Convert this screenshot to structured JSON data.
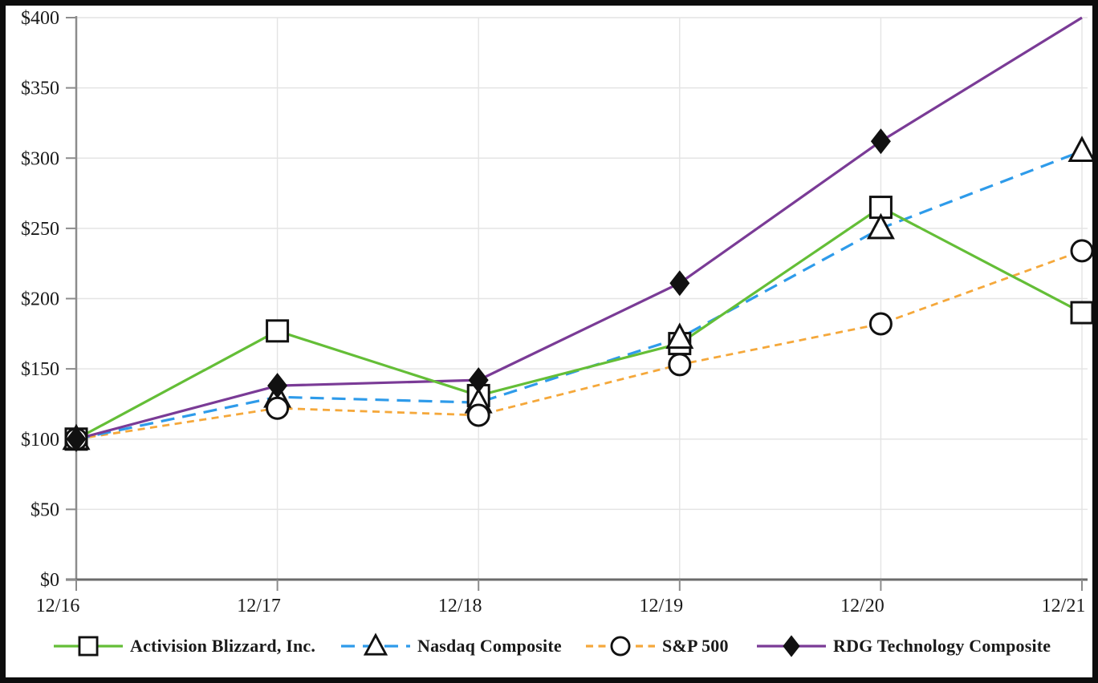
{
  "chart_data": {
    "type": "line",
    "title": "",
    "xlabel": "",
    "ylabel": "",
    "categories": [
      "12/16",
      "12/17",
      "12/18",
      "12/19",
      "12/20",
      "12/21"
    ],
    "y_tick_labels": [
      "$0",
      "$50",
      "$100",
      "$150",
      "$200",
      "$250",
      "$300",
      "$350",
      "$400"
    ],
    "y_tick_values": [
      0,
      50,
      100,
      150,
      200,
      250,
      300,
      350,
      400
    ],
    "ylim": [
      0,
      400
    ],
    "grid": true,
    "legend_position": "bottom",
    "series": [
      {
        "name": "Activision Blizzard, Inc.",
        "values": [
          100,
          177,
          131,
          168,
          265,
          190
        ],
        "color": "#64BE37",
        "line_style": "solid",
        "marker": "square-outline"
      },
      {
        "name": "Nasdaq Composite",
        "values": [
          100,
          130,
          126,
          172,
          250,
          305
        ],
        "color": "#2E9BEA",
        "line_style": "dashed",
        "marker": "triangle-outline"
      },
      {
        "name": "S&P 500",
        "values": [
          100,
          122,
          117,
          153,
          182,
          234
        ],
        "color": "#F5A83B",
        "line_style": "short-dashed",
        "marker": "circle-outline"
      },
      {
        "name": "RDG Technology Composite",
        "values": [
          100,
          138,
          142,
          211,
          312,
          400
        ],
        "color": "#7A3B96",
        "line_style": "solid",
        "marker": "diamond-filled"
      }
    ],
    "colors": {
      "background": "#ffffff",
      "frame": "#0d0d0d",
      "gridline": "#E4E4E4",
      "y_axis": "#8C8C8C",
      "x_axis": "#6B6B6B",
      "marker_stroke": "#111111",
      "label_text": "#1a1a1a"
    }
  }
}
